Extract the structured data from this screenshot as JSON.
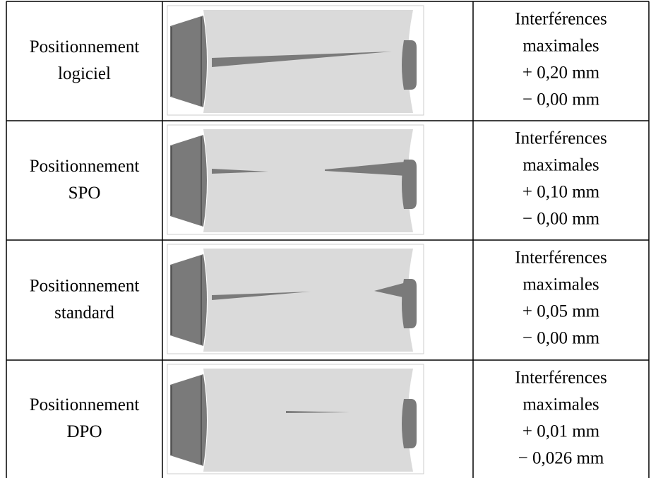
{
  "table": {
    "rows": [
      {
        "method": [
          "Positionnement",
          "logiciel"
        ],
        "result": [
          "Interférences",
          "maximales",
          "+ 0,20 mm",
          "− 0,00 mm"
        ]
      },
      {
        "method": [
          "Positionnement",
          "SPO"
        ],
        "result": [
          "Interférences",
          "maximales",
          "+ 0,10 mm",
          "− 0,00 mm"
        ]
      },
      {
        "method": [
          "Positionnement",
          "standard"
        ],
        "result": [
          "Interférences",
          "maximales",
          "+ 0,05 mm",
          "− 0,00 mm"
        ]
      },
      {
        "method": [
          "Positionnement",
          "DPO"
        ],
        "result": [
          "Interférences",
          "maximales",
          "+ 0,01 mm",
          "− 0,026 mm"
        ]
      }
    ]
  }
}
